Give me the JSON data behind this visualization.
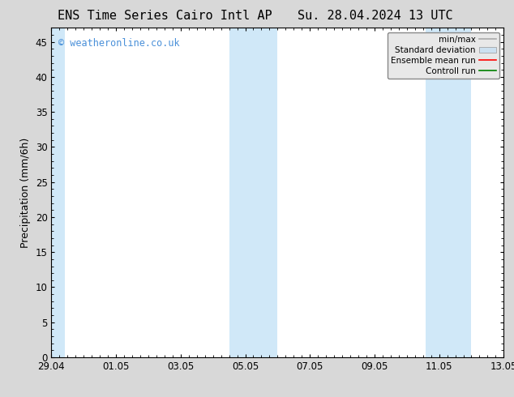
{
  "title_left": "ENS Time Series Cairo Intl AP",
  "title_right": "Su. 28.04.2024 13 UTC",
  "ylabel": "Precipitation (mm/6h)",
  "xlim": [
    0,
    336
  ],
  "ylim": [
    0,
    47
  ],
  "yticks": [
    0,
    5,
    10,
    15,
    20,
    25,
    30,
    35,
    40,
    45
  ],
  "xtick_labels": [
    "29.04",
    "01.05",
    "03.05",
    "05.05",
    "07.05",
    "09.05",
    "11.05",
    "13.05"
  ],
  "xtick_positions": [
    0,
    48,
    96,
    144,
    192,
    240,
    288,
    336
  ],
  "bg_color": "#d8d8d8",
  "plot_bg_color": "#ffffff",
  "shaded_bands": [
    {
      "xmin": 0,
      "xmax": 10,
      "color": "#d0e8f8"
    },
    {
      "xmin": 132,
      "xmax": 168,
      "color": "#d0e8f8"
    },
    {
      "xmin": 278,
      "xmax": 312,
      "color": "#d0e8f8"
    }
  ],
  "watermark_text": "© weatheronline.co.uk",
  "watermark_color": "#4a90d9",
  "legend_items": [
    {
      "label": "min/max",
      "color": "#aaaaaa",
      "lw": 1.2,
      "ls": "-"
    },
    {
      "label": "Standard deviation",
      "color": "#cce0f0",
      "lw": 7,
      "ls": "-"
    },
    {
      "label": "Ensemble mean run",
      "color": "#ff0000",
      "lw": 1.2,
      "ls": "-"
    },
    {
      "label": "Controll run",
      "color": "#008000",
      "lw": 1.2,
      "ls": "-"
    }
  ],
  "title_fontsize": 11,
  "tick_fontsize": 8.5,
  "label_fontsize": 9,
  "watermark_fontsize": 8.5
}
